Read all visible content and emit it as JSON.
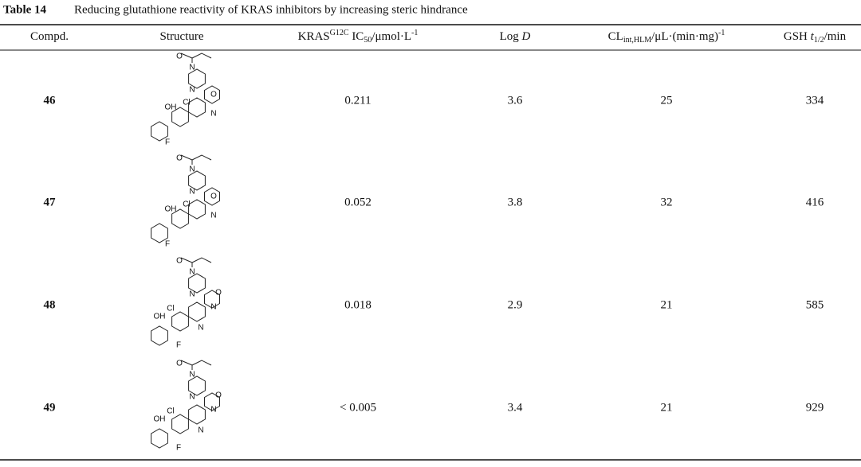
{
  "title": {
    "label": "Table 14",
    "text": "Reducing glutathione reactivity of KRAS inhibitors by increasing steric hindrance"
  },
  "table": {
    "header": [
      [
        {
          "text": "Compd.",
          "style": "normal"
        }
      ],
      [
        {
          "text": "Structure",
          "style": "normal"
        }
      ],
      [
        {
          "text": "KRAS",
          "style": "normal"
        },
        {
          "text": "G12C",
          "style": "sup"
        },
        {
          "text": " IC",
          "style": "normal"
        },
        {
          "text": "50",
          "style": "sub"
        },
        {
          "text": "/μmol·L",
          "style": "normal"
        },
        {
          "text": "-1",
          "style": "sup"
        }
      ],
      [
        {
          "text": "Log ",
          "style": "normal"
        },
        {
          "text": "D",
          "style": "italic"
        }
      ],
      [
        {
          "text": "CL",
          "style": "normal"
        },
        {
          "text": "int,HLM",
          "style": "sub"
        },
        {
          "text": "/μL·(min·mg)",
          "style": "normal"
        },
        {
          "text": "-1",
          "style": "sup"
        }
      ],
      [
        {
          "text": "GSH ",
          "style": "normal"
        },
        {
          "text": "t",
          "style": "italic"
        },
        {
          "text": "1/2",
          "style": "sub"
        },
        {
          "text": "/min",
          "style": "normal"
        }
      ]
    ],
    "rows": [
      {
        "compd": "46",
        "structure": [
          "O",
          "N",
          "N",
          "O",
          "Cl",
          "OH",
          "N",
          "F"
        ],
        "ic50": "0.211",
        "logd": "3.6",
        "cl": "25",
        "gsh": "334"
      },
      {
        "compd": "47",
        "structure": [
          "O",
          "N",
          "N",
          "O",
          "Cl",
          "OH",
          "N",
          "F"
        ],
        "ic50": "0.052",
        "logd": "3.8",
        "cl": "32",
        "gsh": "416"
      },
      {
        "compd": "48",
        "structure": [
          "O",
          "N",
          "N",
          "O",
          "N",
          "Cl",
          "OH",
          "N",
          "F"
        ],
        "ic50": "0.018",
        "logd": "2.9",
        "cl": "21",
        "gsh": "585"
      },
      {
        "compd": "49",
        "structure": [
          "O",
          "N",
          "N",
          "O",
          "N",
          "Cl",
          "OH",
          "N",
          "F"
        ],
        "ic50": "< 0.005",
        "logd": "3.4",
        "cl": "21",
        "gsh": "929"
      }
    ]
  }
}
